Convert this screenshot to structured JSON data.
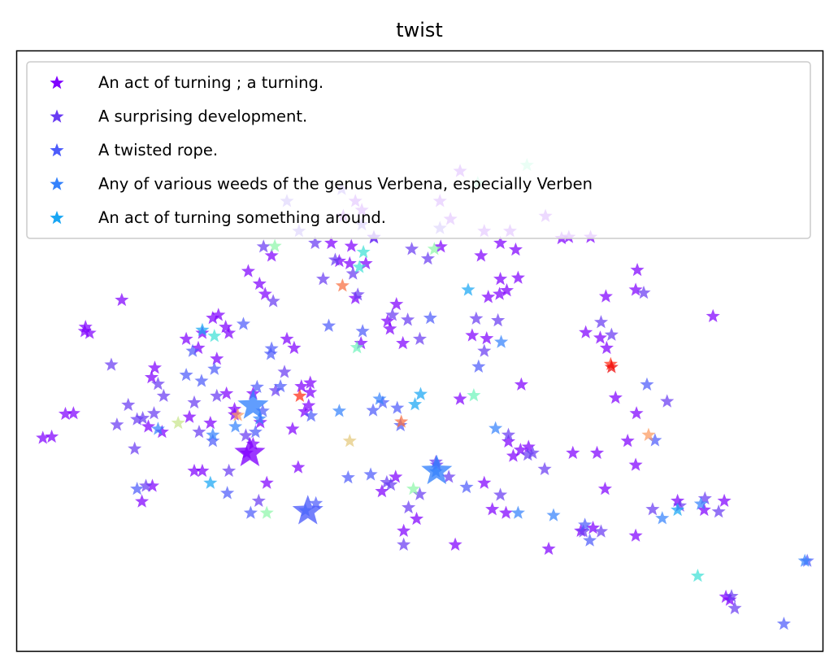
{
  "chart_data": {
    "type": "scatter",
    "title": "twist",
    "xlabel": "",
    "ylabel": "",
    "ticks_visible": false,
    "grid": false,
    "legend_position": "top-left",
    "marker": "star",
    "xlim": [
      0,
      100
    ],
    "ylim": [
      0,
      100
    ],
    "series": [
      {
        "name": "An act of turning ; a turning.",
        "color": "#8000ff",
        "points": [
          [
            8.4,
            53.3
          ],
          [
            13.0,
            58.5
          ],
          [
            16.7,
            45.6
          ],
          [
            17.1,
            47.2
          ],
          [
            16.3,
            37.4
          ],
          [
            15.5,
            24.9
          ],
          [
            16.8,
            27.5
          ],
          [
            21.0,
            52.0
          ],
          [
            21.4,
            39.0
          ],
          [
            24.0,
            38.0
          ],
          [
            23.0,
            30.0
          ],
          [
            28.7,
            63.3
          ],
          [
            25.9,
            54.0
          ],
          [
            30.1,
            61.2
          ],
          [
            30.8,
            59.5
          ],
          [
            31.6,
            65.9
          ],
          [
            33.5,
            52.0
          ],
          [
            34.4,
            50.5
          ],
          [
            35.3,
            44.1
          ],
          [
            36.4,
            43.1
          ],
          [
            34.2,
            37.0
          ],
          [
            36.4,
            44.7
          ],
          [
            34.9,
            30.6
          ],
          [
            31.0,
            28.0
          ],
          [
            28.5,
            33.0
          ],
          [
            27.0,
            39.4
          ],
          [
            27.0,
            40.3
          ],
          [
            29.3,
            34.5
          ],
          [
            30.2,
            38.1
          ],
          [
            26.0,
            42.9
          ],
          [
            26.3,
            53.0
          ],
          [
            18.0,
            36.5
          ],
          [
            22.0,
            30.0
          ],
          [
            24.3,
            55.5
          ],
          [
            29.3,
            42.9
          ],
          [
            24.8,
            48.7
          ],
          [
            22.5,
            50.5
          ],
          [
            23.0,
            53.0
          ],
          [
            25.0,
            56.0
          ],
          [
            41.3,
            64.6
          ],
          [
            41.5,
            67.5
          ],
          [
            43.3,
            64.6
          ],
          [
            42.8,
            73.5
          ],
          [
            44.3,
            69.0
          ],
          [
            46.0,
            55.0
          ],
          [
            47.1,
            57.8
          ],
          [
            46.3,
            53.7
          ],
          [
            47.9,
            51.3
          ],
          [
            55.0,
            42.0
          ],
          [
            56.5,
            52.6
          ],
          [
            58.3,
            52.1
          ],
          [
            60.0,
            62.0
          ],
          [
            62.6,
            44.4
          ],
          [
            61.0,
            34.9
          ],
          [
            61.6,
            32.5
          ],
          [
            59.0,
            23.6
          ],
          [
            58.0,
            28.0
          ],
          [
            54.4,
            17.7
          ],
          [
            49.6,
            22.0
          ],
          [
            48.0,
            20.0
          ],
          [
            47.0,
            29.0
          ],
          [
            45.3,
            26.6
          ],
          [
            40.0,
            65.0
          ],
          [
            39.0,
            68.0
          ],
          [
            42.0,
            75.0
          ],
          [
            40.5,
            72.5
          ],
          [
            52.6,
            67.4
          ],
          [
            53.8,
            72.0
          ],
          [
            52.5,
            75.0
          ],
          [
            55.0,
            80.0
          ],
          [
            57.6,
            65.9
          ],
          [
            60.0,
            68.0
          ],
          [
            58.0,
            70.0
          ],
          [
            61.2,
            70.0
          ],
          [
            62.2,
            62.2
          ],
          [
            60.8,
            60.1
          ],
          [
            59.9,
            59.5
          ],
          [
            58.5,
            59.0
          ],
          [
            61.9,
            66.9
          ],
          [
            65.6,
            72.5
          ],
          [
            67.6,
            68.8
          ],
          [
            68.5,
            69.0
          ],
          [
            71.2,
            69.0
          ],
          [
            70.6,
            53.1
          ],
          [
            72.4,
            52.2
          ],
          [
            73.1,
            59.1
          ],
          [
            77.0,
            63.5
          ],
          [
            76.8,
            60.2
          ],
          [
            76.9,
            39.6
          ],
          [
            75.8,
            35.0
          ],
          [
            73.2,
            50.5
          ],
          [
            74.3,
            42.2
          ],
          [
            76.8,
            31.0
          ],
          [
            69.0,
            33.0
          ],
          [
            72.0,
            33.0
          ],
          [
            66.0,
            17.0
          ],
          [
            70.0,
            20.0
          ],
          [
            71.5,
            20.5
          ],
          [
            73.0,
            27.0
          ],
          [
            76.8,
            19.2
          ],
          [
            82.0,
            25.0
          ],
          [
            85.3,
            23.5
          ],
          [
            87.8,
            25.0
          ],
          [
            86.4,
            55.8
          ],
          [
            88.0,
            9.0
          ],
          [
            88.5,
            8.5
          ],
          [
            60.7,
            23.0
          ],
          [
            63.5,
            34.0
          ],
          [
            62.5,
            33.5
          ],
          [
            42.0,
            58.8
          ],
          [
            42.7,
            51.3
          ],
          [
            36.2,
            40.9
          ],
          [
            35.7,
            39.9
          ],
          [
            7.0,
            39.6
          ],
          [
            6.0,
            39.5
          ],
          [
            3.2,
            35.5
          ],
          [
            4.3,
            35.7
          ],
          [
            8.5,
            54.0
          ],
          [
            9.0,
            53.0
          ]
        ]
      },
      {
        "name": "A surprising development.",
        "color": "#6a3cf3",
        "points": [
          [
            28.4,
            35.9
          ],
          [
            24.8,
            42.5
          ],
          [
            18.2,
            42.5
          ],
          [
            17.5,
            44.5
          ],
          [
            17.0,
            39.6
          ],
          [
            13.8,
            41.0
          ],
          [
            12.4,
            37.7
          ],
          [
            14.9,
            38.6
          ],
          [
            15.6,
            38.8
          ],
          [
            11.7,
            47.7
          ],
          [
            14.6,
            33.7
          ],
          [
            16.0,
            27.5
          ],
          [
            22.6,
            36.5
          ],
          [
            22.0,
            41.4
          ],
          [
            26.3,
            30.0
          ],
          [
            30.0,
            25.0
          ],
          [
            48.0,
            17.7
          ],
          [
            50.0,
            26.1
          ],
          [
            45.9,
            28.1
          ],
          [
            46.4,
            27.7
          ],
          [
            48.6,
            23.9
          ],
          [
            60.0,
            26.0
          ],
          [
            61.0,
            36.0
          ],
          [
            63.4,
            32.7
          ],
          [
            59.7,
            55.1
          ],
          [
            58.0,
            50.0
          ],
          [
            57.0,
            55.4
          ],
          [
            51.0,
            65.4
          ],
          [
            52.5,
            70.5
          ],
          [
            49.0,
            67.0
          ],
          [
            48.5,
            55.2
          ],
          [
            50.0,
            52.0
          ],
          [
            46.6,
            56.0
          ],
          [
            31.8,
            58.3
          ],
          [
            30.6,
            67.4
          ],
          [
            33.5,
            75.0
          ],
          [
            35.0,
            70.0
          ],
          [
            37.0,
            68.0
          ],
          [
            39.5,
            65.2
          ],
          [
            38.0,
            62.0
          ],
          [
            40.3,
            77.0
          ],
          [
            42.8,
            71.1
          ],
          [
            44.3,
            68.9
          ],
          [
            73.8,
            52.7
          ],
          [
            72.5,
            54.8
          ],
          [
            77.8,
            59.7
          ],
          [
            80.7,
            41.6
          ],
          [
            78.9,
            23.6
          ],
          [
            82.3,
            24.2
          ],
          [
            65.5,
            30.3
          ],
          [
            64.0,
            33.0
          ],
          [
            52.0,
            31.5
          ],
          [
            53.6,
            29.0
          ],
          [
            52.1,
            31.0
          ],
          [
            42.3,
            59.4
          ],
          [
            41.7,
            62.9
          ],
          [
            70.3,
            19.9
          ],
          [
            72.5,
            19.9
          ],
          [
            89.1,
            7.1
          ],
          [
            88.7,
            9.1
          ],
          [
            85.4,
            25.4
          ],
          [
            87.1,
            23.2
          ],
          [
            33.2,
            46.5
          ],
          [
            32.1,
            43.4
          ]
        ]
      },
      {
        "name": "A twisted rope.",
        "color": "#4d5cfb",
        "points": [
          [
            37.1,
            24.6
          ],
          [
            29.8,
            44.0
          ],
          [
            32.7,
            44.1
          ],
          [
            38.7,
            54.2
          ],
          [
            28.1,
            54.5
          ],
          [
            31.6,
            50.4
          ],
          [
            31.5,
            49.5
          ],
          [
            26.1,
            26.3
          ],
          [
            29.0,
            23.0
          ],
          [
            24.3,
            35.0
          ],
          [
            22.9,
            45.0
          ],
          [
            21.8,
            50.0
          ],
          [
            21.0,
            46.0
          ],
          [
            24.5,
            47.0
          ],
          [
            42.9,
            53.3
          ],
          [
            44.2,
            40.1
          ],
          [
            47.2,
            40.5
          ],
          [
            45.4,
            41.4
          ],
          [
            47.6,
            37.6
          ],
          [
            41.1,
            28.9
          ],
          [
            43.9,
            29.4
          ],
          [
            51.3,
            55.5
          ],
          [
            55.8,
            27.3
          ],
          [
            57.3,
            47.4
          ],
          [
            71.1,
            18.4
          ],
          [
            70.5,
            21.0
          ],
          [
            78.2,
            44.4
          ],
          [
            79.2,
            35.1
          ],
          [
            95.2,
            4.5
          ],
          [
            98.1,
            15.0
          ],
          [
            14.9,
            27.0
          ],
          [
            29.6,
            36.5
          ],
          [
            30.5,
            40.0
          ],
          [
            36.5,
            39.2
          ]
        ]
      },
      {
        "name": "Any of various weeds of the genus Verbena, especially Verben",
        "color": "#3482fc",
        "points": [
          [
            27.1,
            37.4
          ],
          [
            30.1,
            38.7
          ],
          [
            35.8,
            23.4
          ],
          [
            52.0,
            29.9
          ],
          [
            59.4,
            37.1
          ],
          [
            62.2,
            23.0
          ],
          [
            66.6,
            22.6
          ],
          [
            80.1,
            22.1
          ],
          [
            84.9,
            24.5
          ],
          [
            97.8,
            15.0
          ],
          [
            60.1,
            51.5
          ],
          [
            40.0,
            40.0
          ],
          [
            45.0,
            42.0
          ],
          [
            17.5,
            37.0
          ],
          [
            24.3,
            36.0
          ]
        ]
      },
      {
        "name": "An act of turning something around.",
        "color": "#18a6f4",
        "points": [
          [
            23.0,
            53.5
          ],
          [
            56.0,
            60.2
          ],
          [
            24.0,
            28.0
          ],
          [
            49.4,
            41.1
          ],
          [
            50.1,
            42.8
          ],
          [
            82.0,
            23.5
          ]
        ]
      },
      {
        "name": "",
        "color": "#3fe0d6",
        "points": [
          [
            24.5,
            52.5
          ],
          [
            42.5,
            64.0
          ],
          [
            43.0,
            66.5
          ],
          [
            84.5,
            12.5
          ]
        ]
      },
      {
        "name": "",
        "color": "#6ff4bb",
        "points": [
          [
            42.2,
            50.6
          ],
          [
            56.7,
            42.6
          ],
          [
            57.2,
            78.0
          ],
          [
            63.3,
            81.0
          ]
        ]
      },
      {
        "name": "",
        "color": "#8ef6a9",
        "points": [
          [
            32.0,
            67.5
          ],
          [
            51.8,
            67.0
          ],
          [
            31.0,
            23.0
          ],
          [
            49.2,
            27.0
          ]
        ]
      },
      {
        "name": "",
        "color": "#c8e58b",
        "points": [
          [
            20.0,
            38.0
          ]
        ]
      },
      {
        "name": "",
        "color": "#e4c97b",
        "points": [
          [
            41.3,
            35.0
          ]
        ]
      },
      {
        "name": "",
        "color": "#fc9a5e",
        "points": [
          [
            27.4,
            39.3
          ],
          [
            78.4,
            36.0
          ]
        ]
      },
      {
        "name": "",
        "color": "#f86d3f",
        "points": [
          [
            40.4,
            60.9
          ],
          [
            47.7,
            38.2
          ]
        ]
      },
      {
        "name": "",
        "color": "#ff2b14",
        "points": [
          [
            35.1,
            42.5
          ],
          [
            73.7,
            47.8
          ]
        ]
      },
      {
        "name": "",
        "color": "#ee0000",
        "points": [
          [
            73.8,
            47.3
          ]
        ]
      }
    ],
    "highlight_points": [
      {
        "x": 28.9,
        "y": 33.0,
        "color": "#8000ff"
      },
      {
        "x": 29.3,
        "y": 40.9,
        "color": "#3482fc"
      },
      {
        "x": 36.1,
        "y": 23.3,
        "color": "#4d5cfb"
      },
      {
        "x": 52.1,
        "y": 30.0,
        "color": "#3482fc"
      }
    ]
  }
}
